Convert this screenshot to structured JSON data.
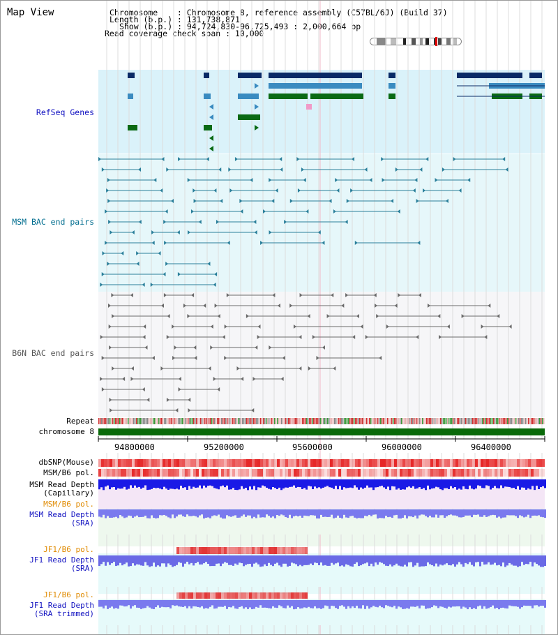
{
  "map_title": "Map View",
  "header": {
    "chromosome": "Chromosome    : Chromosome 8, reference assembly (C57BL/6J) (Build 37)",
    "length": "Length (b.p.) : 131,738,871",
    "show": "Show (b.p.) : 94,724,830-96,725,493 : 2,000,664 bp",
    "coverage": "Read coverage check span : 10,000"
  },
  "tracks": {
    "refseq": {
      "label": "RefSeq Genes",
      "color": "#1010c0"
    },
    "msm_bac": {
      "label": "MSM BAC end pairs",
      "color": "#006d8f"
    },
    "b6n_bac": {
      "label": "B6N BAC end pairs",
      "color": "#555555"
    },
    "repeat": {
      "label": "Repeat",
      "color": "#000000"
    },
    "chromosome": {
      "label": "chromosome 8",
      "color": "#000000"
    },
    "dbsnp": {
      "label": "dbSNP(Mouse)",
      "color": "#000000"
    },
    "msm_b6_pol": {
      "label": "MSM/B6 pol.",
      "color": "#000000"
    },
    "msm_depth_cap": {
      "label": "MSM Read Depth\n(Capillary)",
      "color": "#000000"
    },
    "msm_b6_pol2": {
      "label": "MSM/B6 pol.",
      "color": "#e08a00"
    },
    "msm_depth_sra": {
      "label": "MSM Read Depth\n(SRA)",
      "color": "#1010c0"
    },
    "jf1_b6_pol": {
      "label": "JF1/B6 pol.",
      "color": "#e08a00"
    },
    "jf1_depth_sra": {
      "label": "JF1 Read Depth\n(SRA)",
      "color": "#1010c0"
    },
    "jf1_b6_pol2": {
      "label": "JF1/B6 pol.",
      "color": "#e08a00"
    },
    "jf1_depth_trim": {
      "label": "JF1 Read Depth\n(SRA trimmed)",
      "color": "#1010c0"
    }
  },
  "axis_ticks": [
    "94800000",
    "95200000",
    "95600000",
    "96000000",
    "96400000"
  ],
  "colors": {
    "refseq_bg": "#daf2fa",
    "msm_bg": "#e6f7fa",
    "b6n_bg": "#f6f6f8",
    "gene_dark": "#0a2a66",
    "gene_mid": "#3a8bc0",
    "gene_green": "#0a6a14",
    "chromosome_bar": "#0a6a0a"
  }
}
